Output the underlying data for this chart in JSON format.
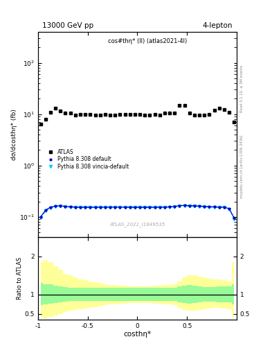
{
  "title_left": "13000 GeV pp",
  "title_right": "4-lepton",
  "plot_label": "cos#thη* (ll) (atlas2021-4l)",
  "watermark": "ATLAS_2021_I1849535",
  "xlabel": "costhη*",
  "ylabel_main": "dσ/dcosthη* (fb)",
  "ylabel_ratio": "Ratio to ATLAS",
  "right_label_top": "Rivet 3.1.10, ≥ 3M events",
  "right_label_bottom": "mcplots.cern.ch [arXiv:1306.3436]",
  "ylim_main": [
    0.04,
    400
  ],
  "ylim_ratio": [
    0.35,
    2.5
  ],
  "xlim": [
    -1.0,
    1.0
  ],
  "ratio_yticks": [
    0.5,
    1.0,
    2.0
  ],
  "atlas_x": [
    -0.975,
    -0.925,
    -0.875,
    -0.825,
    -0.775,
    -0.725,
    -0.675,
    -0.625,
    -0.575,
    -0.525,
    -0.475,
    -0.425,
    -0.375,
    -0.325,
    -0.275,
    -0.225,
    -0.175,
    -0.125,
    -0.075,
    -0.025,
    0.025,
    0.075,
    0.125,
    0.175,
    0.225,
    0.275,
    0.325,
    0.375,
    0.425,
    0.475,
    0.525,
    0.575,
    0.625,
    0.675,
    0.725,
    0.775,
    0.825,
    0.875,
    0.925,
    0.975
  ],
  "atlas_y": [
    6.5,
    8.0,
    11.0,
    13.0,
    11.5,
    10.5,
    10.5,
    9.5,
    10.0,
    10.0,
    10.0,
    9.5,
    9.5,
    10.0,
    9.5,
    9.5,
    10.0,
    10.0,
    10.0,
    10.0,
    10.0,
    9.5,
    9.5,
    10.0,
    9.5,
    10.5,
    10.5,
    10.5,
    15.0,
    15.0,
    10.5,
    9.5,
    9.5,
    9.5,
    10.0,
    12.0,
    13.0,
    12.5,
    11.0,
    7.0
  ],
  "mc_default_x": [
    -0.975,
    -0.925,
    -0.875,
    -0.825,
    -0.775,
    -0.725,
    -0.675,
    -0.625,
    -0.575,
    -0.525,
    -0.475,
    -0.425,
    -0.375,
    -0.325,
    -0.275,
    -0.225,
    -0.175,
    -0.125,
    -0.075,
    -0.025,
    0.025,
    0.075,
    0.125,
    0.175,
    0.225,
    0.275,
    0.325,
    0.375,
    0.425,
    0.475,
    0.525,
    0.575,
    0.625,
    0.675,
    0.725,
    0.775,
    0.825,
    0.875,
    0.925,
    0.975
  ],
  "mc_default_y": [
    0.1,
    0.135,
    0.155,
    0.162,
    0.165,
    0.16,
    0.158,
    0.155,
    0.155,
    0.155,
    0.155,
    0.155,
    0.155,
    0.155,
    0.155,
    0.155,
    0.155,
    0.155,
    0.155,
    0.155,
    0.155,
    0.155,
    0.155,
    0.155,
    0.155,
    0.155,
    0.157,
    0.16,
    0.165,
    0.168,
    0.165,
    0.165,
    0.162,
    0.16,
    0.158,
    0.157,
    0.155,
    0.155,
    0.145,
    0.095
  ],
  "mc_vincia_x": [
    -0.975,
    -0.925,
    -0.875,
    -0.825,
    -0.775,
    -0.725,
    -0.675,
    -0.625,
    -0.575,
    -0.525,
    -0.475,
    -0.425,
    -0.375,
    -0.325,
    -0.275,
    -0.225,
    -0.175,
    -0.125,
    -0.075,
    -0.025,
    0.025,
    0.075,
    0.125,
    0.175,
    0.225,
    0.275,
    0.325,
    0.375,
    0.425,
    0.475,
    0.525,
    0.575,
    0.625,
    0.675,
    0.725,
    0.775,
    0.825,
    0.875,
    0.925,
    0.975
  ],
  "mc_vincia_y": [
    0.095,
    0.13,
    0.15,
    0.158,
    0.162,
    0.158,
    0.155,
    0.153,
    0.152,
    0.152,
    0.152,
    0.152,
    0.152,
    0.152,
    0.152,
    0.152,
    0.152,
    0.152,
    0.152,
    0.152,
    0.152,
    0.152,
    0.152,
    0.152,
    0.152,
    0.152,
    0.154,
    0.157,
    0.162,
    0.165,
    0.162,
    0.162,
    0.16,
    0.158,
    0.155,
    0.155,
    0.153,
    0.152,
    0.142,
    0.092
  ],
  "green_band_upper": [
    1.3,
    1.28,
    1.27,
    1.24,
    1.22,
    1.2,
    1.18,
    1.18,
    1.18,
    1.18,
    1.18,
    1.18,
    1.18,
    1.18,
    1.18,
    1.18,
    1.18,
    1.18,
    1.18,
    1.18,
    1.18,
    1.18,
    1.18,
    1.18,
    1.18,
    1.18,
    1.18,
    1.18,
    1.22,
    1.24,
    1.25,
    1.24,
    1.22,
    1.2,
    1.2,
    1.2,
    1.22,
    1.22,
    1.22,
    1.28
  ],
  "green_band_lower": [
    0.72,
    0.74,
    0.76,
    0.78,
    0.8,
    0.82,
    0.83,
    0.83,
    0.83,
    0.83,
    0.83,
    0.83,
    0.83,
    0.83,
    0.83,
    0.83,
    0.83,
    0.83,
    0.83,
    0.83,
    0.83,
    0.83,
    0.83,
    0.83,
    0.83,
    0.83,
    0.83,
    0.83,
    0.8,
    0.78,
    0.77,
    0.78,
    0.8,
    0.82,
    0.82,
    0.82,
    0.8,
    0.8,
    0.8,
    0.74
  ],
  "yellow_band_upper": [
    1.85,
    1.9,
    1.85,
    1.75,
    1.65,
    1.55,
    1.5,
    1.45,
    1.4,
    1.38,
    1.35,
    1.32,
    1.3,
    1.28,
    1.26,
    1.25,
    1.24,
    1.23,
    1.22,
    1.22,
    1.22,
    1.22,
    1.22,
    1.23,
    1.24,
    1.25,
    1.26,
    1.28,
    1.35,
    1.45,
    1.5,
    1.5,
    1.48,
    1.45,
    1.42,
    1.4,
    1.4,
    1.38,
    1.35,
    1.85
  ],
  "yellow_band_lower": [
    0.42,
    0.38,
    0.42,
    0.45,
    0.5,
    0.55,
    0.58,
    0.6,
    0.62,
    0.64,
    0.66,
    0.68,
    0.7,
    0.72,
    0.74,
    0.75,
    0.76,
    0.77,
    0.78,
    0.78,
    0.78,
    0.78,
    0.78,
    0.77,
    0.76,
    0.75,
    0.74,
    0.72,
    0.66,
    0.6,
    0.58,
    0.58,
    0.6,
    0.62,
    0.64,
    0.65,
    0.65,
    0.64,
    0.62,
    0.42
  ],
  "mc_default_color": "#0000cc",
  "mc_vincia_color": "#00ccff",
  "atlas_color": "#000000",
  "green_color": "#98fb98",
  "yellow_color": "#ffff99",
  "legend_labels": [
    "ATLAS",
    "Pythia 8.308 default",
    "Pythia 8.308 vincia-default"
  ],
  "bin_width": 0.05
}
